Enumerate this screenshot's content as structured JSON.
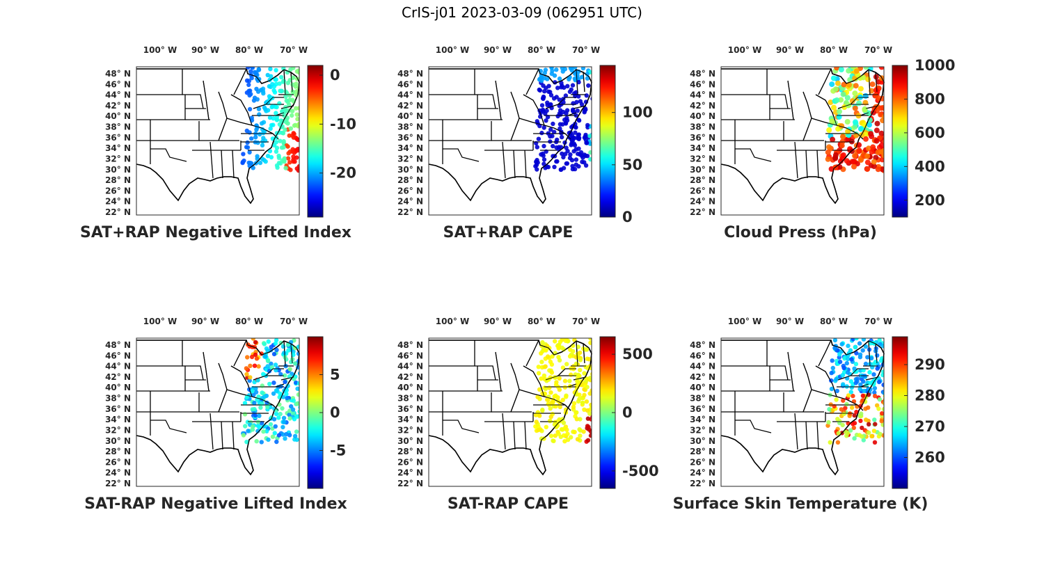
{
  "figure_title": "CrIS-j01 2023-03-09 (062951 UTC)",
  "lon_ticks": [
    "100",
    "90",
    "80",
    "70"
  ],
  "lon_suffix": "W",
  "lat_ticks": [
    "48",
    "46",
    "44",
    "42",
    "40",
    "38",
    "36",
    "34",
    "32",
    "30",
    "28",
    "26",
    "24",
    "22"
  ],
  "lat_suffix": "N",
  "degree_symbol": "°",
  "panels": [
    {
      "title": "SAT+RAP Negative Lifted Index",
      "field": "neg_lifted_index",
      "colorbar": {
        "ticks": [
          "0",
          "-10",
          "-20"
        ],
        "range": [
          -29,
          2
        ],
        "tick_values": [
          0,
          -10,
          -20
        ]
      }
    },
    {
      "title": "SAT+RAP CAPE",
      "field": "cape",
      "colorbar": {
        "ticks": [
          "100",
          "50",
          "0"
        ],
        "range": [
          0,
          145
        ],
        "tick_values": [
          100,
          50,
          0
        ]
      }
    },
    {
      "title": "Cloud Press (hPa)",
      "field": "cloud_press",
      "colorbar": {
        "ticks": [
          "1000",
          "800",
          "600",
          "400",
          "200"
        ],
        "range": [
          100,
          1000
        ],
        "tick_values": [
          1000,
          800,
          600,
          400,
          200
        ]
      }
    },
    {
      "title": "SAT-RAP Negative Lifted Index",
      "field": "diff_lifted_index",
      "colorbar": {
        "ticks": [
          "5",
          "0",
          "-5"
        ],
        "range": [
          -10,
          10
        ],
        "tick_values": [
          5,
          0,
          -5
        ]
      }
    },
    {
      "title": "SAT-RAP CAPE",
      "field": "diff_cape",
      "colorbar": {
        "ticks": [
          "500",
          "0",
          "-500"
        ],
        "range": [
          -650,
          650
        ],
        "tick_values": [
          500,
          0,
          -500
        ]
      }
    },
    {
      "title": "Surface Skin Temperature (K)",
      "field": "skin_temp",
      "colorbar": {
        "ticks": [
          "290",
          "280",
          "270",
          "260"
        ],
        "range": [
          250,
          299
        ],
        "tick_values": [
          290,
          280,
          270,
          260
        ]
      }
    }
  ],
  "colormap": "jet"
}
